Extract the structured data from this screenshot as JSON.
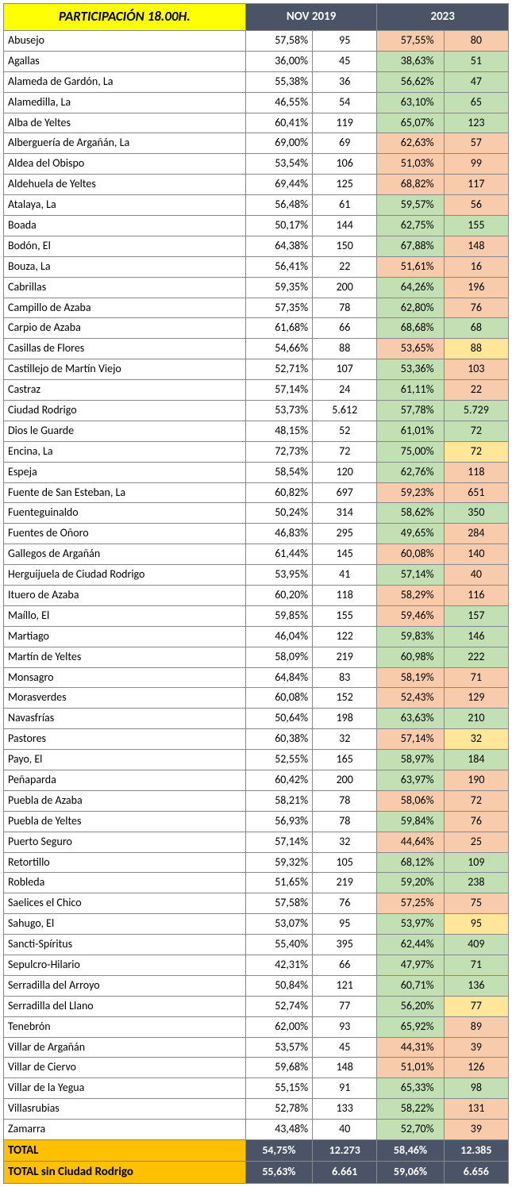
{
  "title": "PARTICIPACIÓN 18.00H.",
  "header_nov": "NOV 2019",
  "header_2023": "2023",
  "colors": {
    "green": "#c3e0b4",
    "orange": "#f8cbad",
    "yellow": "#ffe699",
    "title_bg": "#ffff00",
    "header_bg": "#4a5466",
    "total_label_bg": "#ffc000"
  },
  "rows": [
    {
      "name": "Abusejo",
      "novp": "57,58%",
      "novn": "95",
      "p23": "57,55%",
      "n23": "80",
      "c1": "orange",
      "c2": "orange"
    },
    {
      "name": "Agallas",
      "novp": "36,00%",
      "novn": "45",
      "p23": "38,63%",
      "n23": "51",
      "c1": "green",
      "c2": "green"
    },
    {
      "name": "Alameda de Gardón, La",
      "novp": "55,38%",
      "novn": "36",
      "p23": "56,62%",
      "n23": "47",
      "c1": "green",
      "c2": "green"
    },
    {
      "name": "Alamedilla, La",
      "novp": "46,55%",
      "novn": "54",
      "p23": "63,10%",
      "n23": "65",
      "c1": "green",
      "c2": "green"
    },
    {
      "name": "Alba de Yeltes",
      "novp": "60,41%",
      "novn": "119",
      "p23": "65,07%",
      "n23": "123",
      "c1": "green",
      "c2": "green"
    },
    {
      "name": "Alberguería de Argañán, La",
      "novp": "69,00%",
      "novn": "69",
      "p23": "62,63%",
      "n23": "57",
      "c1": "orange",
      "c2": "orange"
    },
    {
      "name": "Aldea del Obispo",
      "novp": "53,54%",
      "novn": "106",
      "p23": "51,03%",
      "n23": "99",
      "c1": "orange",
      "c2": "orange"
    },
    {
      "name": "Aldehuela de Yeltes",
      "novp": "69,44%",
      "novn": "125",
      "p23": "68,82%",
      "n23": "117",
      "c1": "orange",
      "c2": "orange"
    },
    {
      "name": "Atalaya, La",
      "novp": "56,48%",
      "novn": "61",
      "p23": "59,57%",
      "n23": "56",
      "c1": "green",
      "c2": "orange"
    },
    {
      "name": "Boada",
      "novp": "50,17%",
      "novn": "144",
      "p23": "62,75%",
      "n23": "155",
      "c1": "green",
      "c2": "green"
    },
    {
      "name": "Bodón, El",
      "novp": "64,38%",
      "novn": "150",
      "p23": "67,88%",
      "n23": "148",
      "c1": "green",
      "c2": "orange"
    },
    {
      "name": "Bouza, La",
      "novp": "56,41%",
      "novn": "22",
      "p23": "51,61%",
      "n23": "16",
      "c1": "orange",
      "c2": "orange"
    },
    {
      "name": "Cabrillas",
      "novp": "59,35%",
      "novn": "200",
      "p23": "64,26%",
      "n23": "196",
      "c1": "green",
      "c2": "orange"
    },
    {
      "name": "Campillo de Azaba",
      "novp": "57,35%",
      "novn": "78",
      "p23": "62,80%",
      "n23": "76",
      "c1": "green",
      "c2": "orange"
    },
    {
      "name": "Carpio de Azaba",
      "novp": "61,68%",
      "novn": "66",
      "p23": "68,68%",
      "n23": "68",
      "c1": "green",
      "c2": "green"
    },
    {
      "name": "Casillas de Flores",
      "novp": "54,66%",
      "novn": "88",
      "p23": "53,65%",
      "n23": "88",
      "c1": "orange",
      "c2": "yellow"
    },
    {
      "name": "Castillejo de Martín Viejo",
      "novp": "52,71%",
      "novn": "107",
      "p23": "53,36%",
      "n23": "103",
      "c1": "green",
      "c2": "orange"
    },
    {
      "name": "Castraz",
      "novp": "57,14%",
      "novn": "24",
      "p23": "61,11%",
      "n23": "22",
      "c1": "green",
      "c2": "orange"
    },
    {
      "name": "Ciudad Rodrigo",
      "novp": "53,73%",
      "novn": "5.612",
      "p23": "57,78%",
      "n23": "5.729",
      "c1": "green",
      "c2": "green"
    },
    {
      "name": "Dios le Guarde",
      "novp": "48,15%",
      "novn": "52",
      "p23": "61,01%",
      "n23": "72",
      "c1": "green",
      "c2": "green"
    },
    {
      "name": "Encina, La",
      "novp": "72,73%",
      "novn": "72",
      "p23": "75,00%",
      "n23": "72",
      "c1": "green",
      "c2": "yellow"
    },
    {
      "name": "Espeja",
      "novp": "58,54%",
      "novn": "120",
      "p23": "62,76%",
      "n23": "118",
      "c1": "green",
      "c2": "orange"
    },
    {
      "name": "Fuente de San Esteban, La",
      "novp": "60,82%",
      "novn": "697",
      "p23": "59,23%",
      "n23": "651",
      "c1": "orange",
      "c2": "orange"
    },
    {
      "name": "Fuenteguinaldo",
      "novp": "50,24%",
      "novn": "314",
      "p23": "58,62%",
      "n23": "350",
      "c1": "green",
      "c2": "green"
    },
    {
      "name": "Fuentes de Oñoro",
      "novp": "46,83%",
      "novn": "295",
      "p23": "49,65%",
      "n23": "284",
      "c1": "green",
      "c2": "orange"
    },
    {
      "name": "Gallegos de Argañán",
      "novp": "61,44%",
      "novn": "145",
      "p23": "60,08%",
      "n23": "140",
      "c1": "orange",
      "c2": "orange"
    },
    {
      "name": "Herguijuela de Ciudad Rodrigo",
      "novp": "53,95%",
      "novn": "41",
      "p23": "57,14%",
      "n23": "40",
      "c1": "green",
      "c2": "orange"
    },
    {
      "name": "Ituero de Azaba",
      "novp": "60,20%",
      "novn": "118",
      "p23": "58,29%",
      "n23": "116",
      "c1": "orange",
      "c2": "orange"
    },
    {
      "name": "Maíllo, El",
      "novp": "59,85%",
      "novn": "155",
      "p23": "59,46%",
      "n23": "157",
      "c1": "orange",
      "c2": "green"
    },
    {
      "name": "Martiago",
      "novp": "46,04%",
      "novn": "122",
      "p23": "59,83%",
      "n23": "146",
      "c1": "green",
      "c2": "green"
    },
    {
      "name": "Martín de Yeltes",
      "novp": "58,09%",
      "novn": "219",
      "p23": "60,98%",
      "n23": "222",
      "c1": "green",
      "c2": "green"
    },
    {
      "name": "Monsagro",
      "novp": "64,84%",
      "novn": "83",
      "p23": "58,19%",
      "n23": "71",
      "c1": "orange",
      "c2": "orange"
    },
    {
      "name": "Morasverdes",
      "novp": "60,08%",
      "novn": "152",
      "p23": "52,43%",
      "n23": "129",
      "c1": "orange",
      "c2": "orange"
    },
    {
      "name": "Navasfrías",
      "novp": "50,64%",
      "novn": "198",
      "p23": "63,63%",
      "n23": "210",
      "c1": "green",
      "c2": "green"
    },
    {
      "name": "Pastores",
      "novp": "60,38%",
      "novn": "32",
      "p23": "57,14%",
      "n23": "32",
      "c1": "orange",
      "c2": "yellow"
    },
    {
      "name": "Payo, El",
      "novp": "52,55%",
      "novn": "165",
      "p23": "58,97%",
      "n23": "184",
      "c1": "green",
      "c2": "green"
    },
    {
      "name": "Peñaparda",
      "novp": "60,42%",
      "novn": "200",
      "p23": "63,97%",
      "n23": "190",
      "c1": "green",
      "c2": "orange"
    },
    {
      "name": "Puebla de Azaba",
      "novp": "58,21%",
      "novn": "78",
      "p23": "58,06%",
      "n23": "72",
      "c1": "orange",
      "c2": "orange"
    },
    {
      "name": "Puebla de Yeltes",
      "novp": "56,93%",
      "novn": "78",
      "p23": "59,84%",
      "n23": "76",
      "c1": "green",
      "c2": "orange"
    },
    {
      "name": "Puerto Seguro",
      "novp": "57,14%",
      "novn": "32",
      "p23": "44,64%",
      "n23": "25",
      "c1": "orange",
      "c2": "orange"
    },
    {
      "name": "Retortillo",
      "novp": "59,32%",
      "novn": "105",
      "p23": "68,12%",
      "n23": "109",
      "c1": "green",
      "c2": "green"
    },
    {
      "name": "Robleda",
      "novp": "51,65%",
      "novn": "219",
      "p23": "59,20%",
      "n23": "238",
      "c1": "green",
      "c2": "green"
    },
    {
      "name": "Saelices el Chico",
      "novp": "57,58%",
      "novn": "76",
      "p23": "57,25%",
      "n23": "75",
      "c1": "orange",
      "c2": "orange"
    },
    {
      "name": "Sahugo, El",
      "novp": "53,07%",
      "novn": "95",
      "p23": "53,97%",
      "n23": "95",
      "c1": "green",
      "c2": "yellow"
    },
    {
      "name": "Sancti-Spíritus",
      "novp": "55,40%",
      "novn": "395",
      "p23": "62,44%",
      "n23": "409",
      "c1": "green",
      "c2": "green"
    },
    {
      "name": "Sepulcro-Hilario",
      "novp": "42,31%",
      "novn": "66",
      "p23": "47,97%",
      "n23": "71",
      "c1": "green",
      "c2": "green"
    },
    {
      "name": "Serradilla del Arroyo",
      "novp": "50,84%",
      "novn": "121",
      "p23": "60,71%",
      "n23": "136",
      "c1": "green",
      "c2": "green"
    },
    {
      "name": "Serradilla del Llano",
      "novp": "52,74%",
      "novn": "77",
      "p23": "56,20%",
      "n23": "77",
      "c1": "green",
      "c2": "yellow"
    },
    {
      "name": "Tenebrón",
      "novp": "62,00%",
      "novn": "93",
      "p23": "65,92%",
      "n23": "89",
      "c1": "green",
      "c2": "orange"
    },
    {
      "name": "Villar de Argañán",
      "novp": "53,57%",
      "novn": "45",
      "p23": "44,31%",
      "n23": "39",
      "c1": "orange",
      "c2": "orange"
    },
    {
      "name": "Villar de Ciervo",
      "novp": "59,68%",
      "novn": "148",
      "p23": "51,01%",
      "n23": "126",
      "c1": "orange",
      "c2": "orange"
    },
    {
      "name": "Villar de la Yegua",
      "novp": "55,15%",
      "novn": "91",
      "p23": "65,33%",
      "n23": "98",
      "c1": "green",
      "c2": "green"
    },
    {
      "name": "Villasrubias",
      "novp": "52,78%",
      "novn": "133",
      "p23": "58,22%",
      "n23": "131",
      "c1": "green",
      "c2": "orange"
    },
    {
      "name": "Zamarra",
      "novp": "43,48%",
      "novn": "40",
      "p23": "52,70%",
      "n23": "39",
      "c1": "green",
      "c2": "orange"
    }
  ],
  "totals": [
    {
      "label": "TOTAL",
      "novp": "54,75%",
      "novn": "12.273",
      "p23": "58,46%",
      "n23": "12.385"
    },
    {
      "label": "TOTAL sin Ciudad Rodrigo",
      "novp": "55,63%",
      "novn": "6.661",
      "p23": "59,06%",
      "n23": "6.656"
    }
  ]
}
